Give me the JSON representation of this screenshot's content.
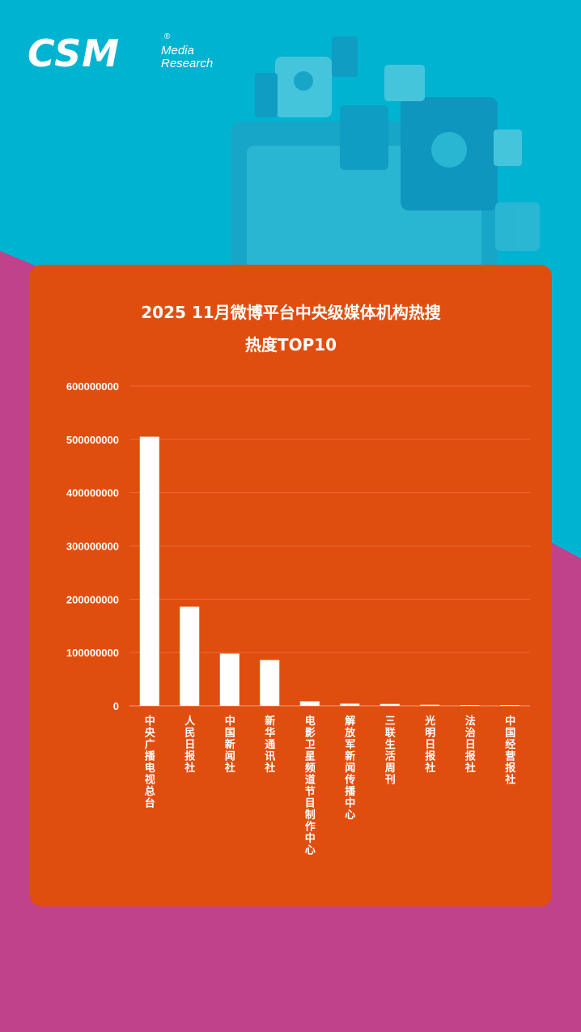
{
  "brand": {
    "logo_main": "CSM",
    "logo_line1": "Media",
    "logo_line2": "Research",
    "logo_reg": "®"
  },
  "colors": {
    "bg_cyan": "#00b4d1",
    "bg_magenta": "#c0428a",
    "card_orange": "#e04e0f",
    "bar": "#ffffff",
    "text": "#ffffff"
  },
  "chart_data": {
    "type": "bar",
    "title_line1": "2025 11月微博平台中央级媒体机构热搜",
    "title_line2": "热度TOP10",
    "categories": [
      "中央广播电视总台",
      "人民日报社",
      "中国新闻社",
      "新华通讯社",
      "电影卫星频道节目制作中心",
      "解放军新闻传播中心",
      "三联生活周刊",
      "光明日报社",
      "法治日报社",
      "中国经营报社"
    ],
    "values": [
      505000000,
      186000000,
      98000000,
      86000000,
      8500000,
      4000000,
      3500000,
      2000000,
      1000000,
      800000
    ],
    "yticks": [
      "0",
      "100000000",
      "200000000",
      "300000000",
      "400000000",
      "500000000",
      "600000000"
    ],
    "ylim": [
      0,
      600000000
    ],
    "grid": true,
    "xlabel": "",
    "ylabel": ""
  }
}
